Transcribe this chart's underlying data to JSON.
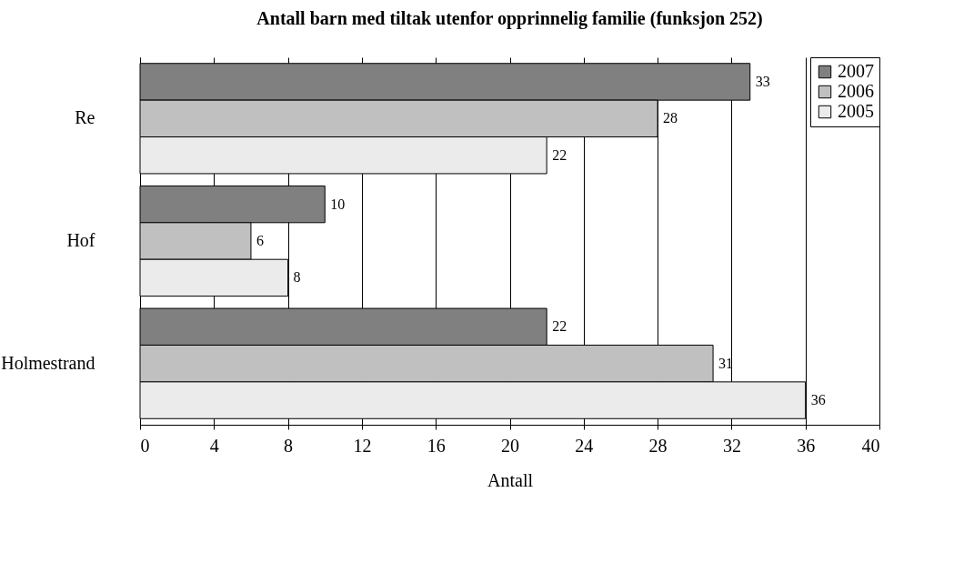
{
  "chart_data": {
    "type": "bar",
    "orientation": "horizontal",
    "title": "Antall barn med tiltak utenfor opprinnelig familie (funksjon 252)",
    "xlabel": "Antall",
    "categories": [
      "Re",
      "Hof",
      "Holmestrand"
    ],
    "series": [
      {
        "name": "2007",
        "color": "#808080",
        "values": [
          33,
          10,
          22
        ]
      },
      {
        "name": "2006",
        "color": "#c0c0c0",
        "values": [
          28,
          6,
          31
        ]
      },
      {
        "name": "2005",
        "color": "#ebebeb",
        "values": [
          22,
          8,
          36
        ]
      }
    ],
    "xlim": [
      0,
      40
    ],
    "xticks": [
      0,
      4,
      8,
      12,
      16,
      20,
      24,
      28,
      32,
      36,
      40
    ],
    "grid": "x",
    "legend": "top right",
    "data_labels": true
  }
}
